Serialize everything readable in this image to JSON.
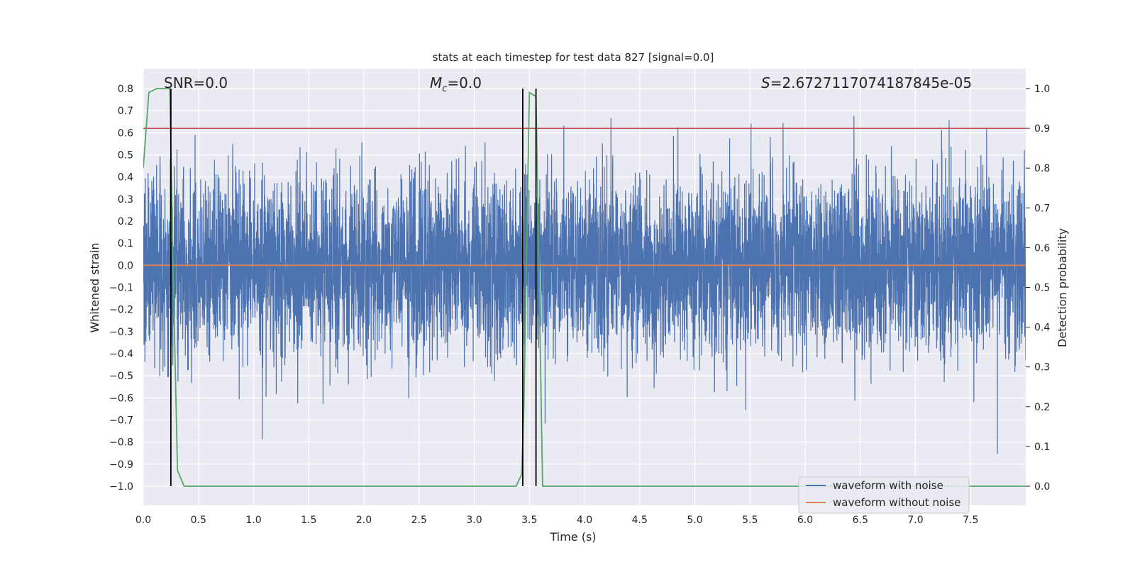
{
  "chart_data": {
    "type": "line",
    "title": "stats at each timestep for test data 827 [signal=0.0]",
    "xlabel": "Time (s)",
    "ylabel": "Whitened strain",
    "ylabel_right": "Detection probability",
    "xlim": [
      0.0,
      8.0
    ],
    "ylim": [
      -1.0,
      0.8
    ],
    "ylim_right": [
      0.0,
      1.0
    ],
    "x_ticks": [
      "0.0",
      "0.5",
      "1.0",
      "1.5",
      "2.0",
      "2.5",
      "3.0",
      "3.5",
      "4.0",
      "4.5",
      "5.0",
      "5.5",
      "6.0",
      "6.5",
      "7.0",
      "7.5"
    ],
    "y_ticks": [
      "0.8",
      "0.7",
      "0.6",
      "0.5",
      "0.4",
      "0.3",
      "0.2",
      "0.1",
      "0.0",
      "−0.1",
      "−0.2",
      "−0.3",
      "−0.4",
      "−0.5",
      "−0.6",
      "−0.7",
      "−0.8",
      "−0.9",
      "−1.0"
    ],
    "y_ticks_right": [
      "1.0",
      "0.9",
      "0.8",
      "0.7",
      "0.6",
      "0.5",
      "0.4",
      "0.3",
      "0.2",
      "0.1",
      "0.0"
    ],
    "annotations": {
      "snr": "SNR=0.0",
      "mc_symbol": "M",
      "mc_sub": "c",
      "mc_value": "=0.0",
      "s_symbol": "S",
      "s_value": "=2.6727117074187845e-05"
    },
    "grid": true,
    "legend_position": "lower-right",
    "legend": [
      {
        "label": "waveform with noise",
        "color": "#4c72b0"
      },
      {
        "label": "waveform without noise",
        "color": "#dd8452"
      }
    ],
    "series": [
      {
        "name": "waveform with noise",
        "color": "#4c72b0",
        "axis": "left",
        "description_range": [
          -1.0,
          0.76
        ],
        "noise_std": 0.2
      },
      {
        "name": "waveform without noise",
        "color": "#dd8452",
        "axis": "left",
        "x": [
          0.0,
          8.0
        ],
        "values": [
          0.0,
          0.0
        ]
      },
      {
        "color": "#55a868",
        "axis": "right",
        "x": [
          0.0,
          0.05,
          0.12,
          0.18,
          0.24,
          0.27,
          0.31,
          0.37,
          3.38,
          3.43,
          3.45,
          3.5,
          3.56,
          3.62,
          8.0
        ],
        "values": [
          0.8,
          0.99,
          1.0,
          1.0,
          1.0,
          0.55,
          0.04,
          0.0,
          0.0,
          0.03,
          0.2,
          0.99,
          0.98,
          0.0,
          0.0
        ]
      }
    ],
    "threshold_line": {
      "value": 0.9,
      "axis": "right",
      "color": "#c44e52"
    },
    "vertical_lines": [
      0.25,
      3.44,
      3.56
    ],
    "colors": {
      "background": "#eaeaf2",
      "grid": "#ffffff",
      "noise": "#4c72b0",
      "clean": "#dd8452",
      "probability": "#55a868",
      "threshold": "#c44e52",
      "markers": "#000000"
    }
  }
}
